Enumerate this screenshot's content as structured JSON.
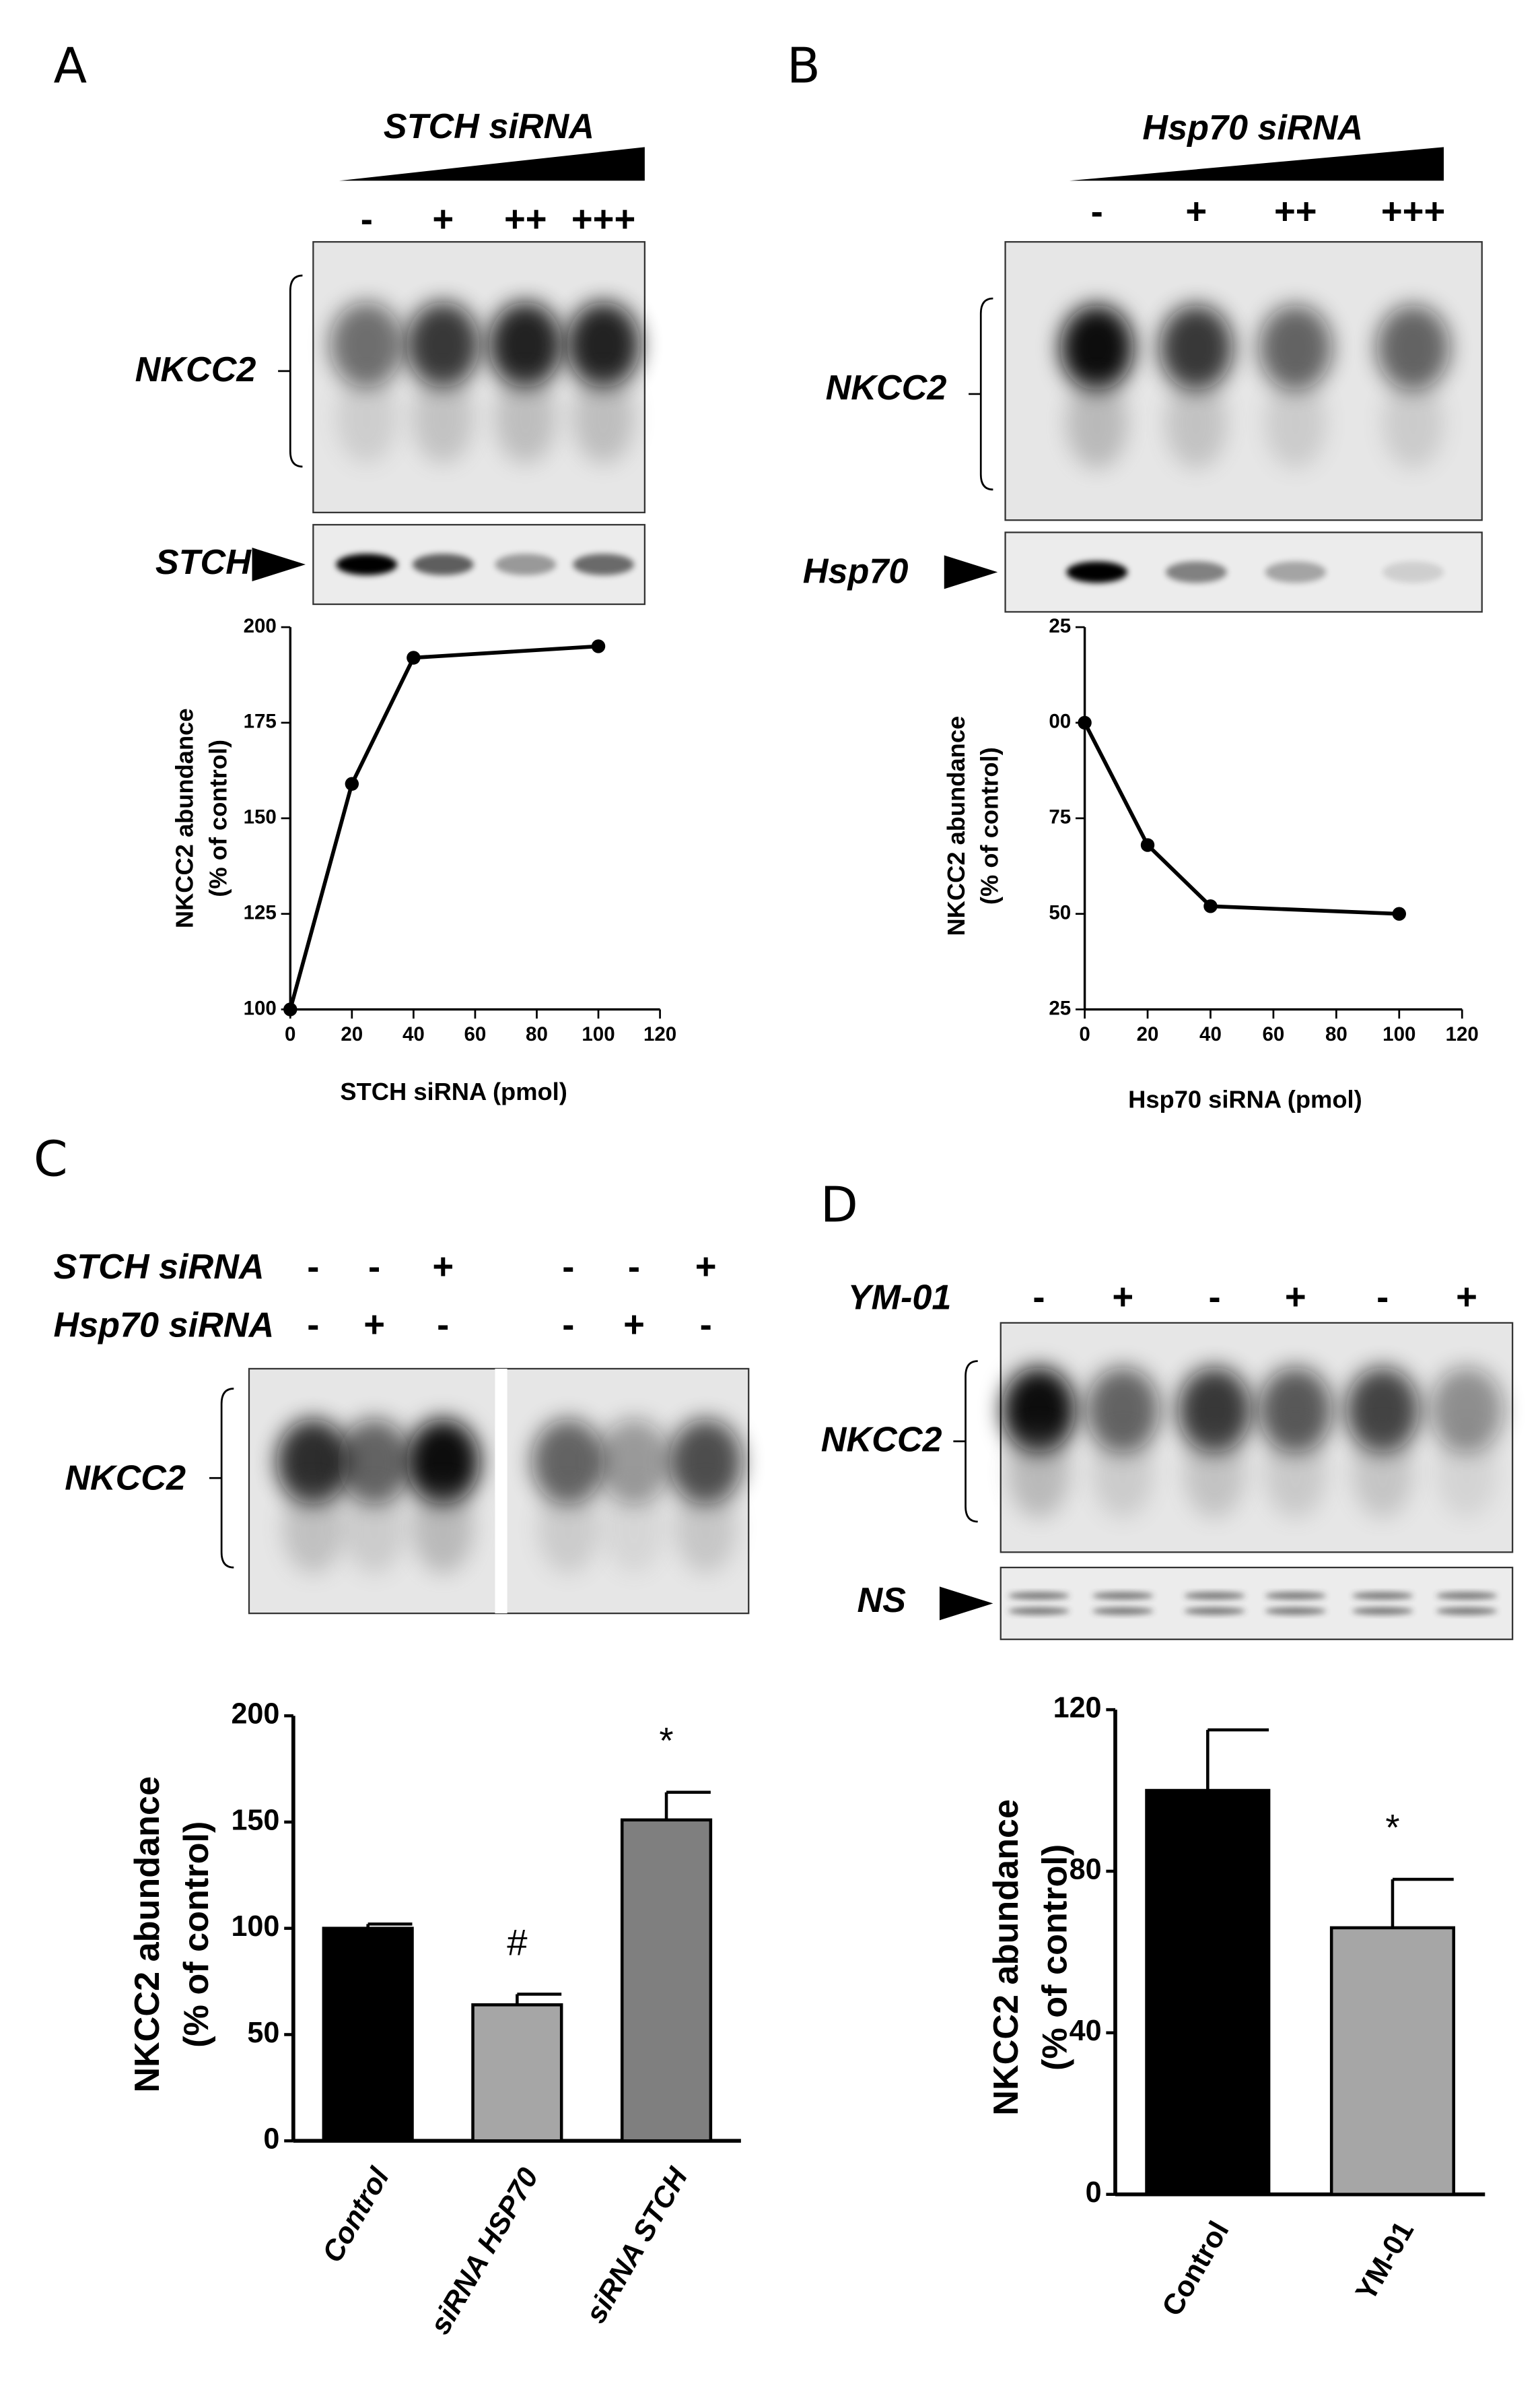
{
  "chart_data": [
    {
      "type": "line",
      "panel_label": "A",
      "treatment": "STCH siRNA",
      "lanes": [
        "-",
        "+",
        "++",
        "+++"
      ],
      "bands": [
        "NKCC2",
        "STCH"
      ],
      "x": [
        0,
        20,
        40,
        100
      ],
      "values": [
        100,
        159,
        192,
        195
      ],
      "color": "#000000",
      "xlim": [
        0,
        120
      ],
      "xticks": [
        0,
        20,
        40,
        60,
        80,
        100,
        120
      ],
      "ylim": [
        100,
        200
      ],
      "yticks": [
        100,
        125,
        150,
        175,
        200
      ],
      "x_label": "STCH siRNA (pmol)",
      "y_label": [
        "NKCC2 abundance",
        "(% of control)"
      ]
    },
    {
      "type": "line",
      "panel_label": "B",
      "treatment": "Hsp70 siRNA",
      "lanes": [
        "-",
        "+",
        "++",
        "+++"
      ],
      "bands": [
        "NKCC2",
        "Hsp70"
      ],
      "x": [
        0,
        20,
        40,
        100
      ],
      "values": [
        100,
        68,
        52,
        50
      ],
      "color": "#000000",
      "xlim": [
        0,
        120
      ],
      "xticks": [
        0,
        20,
        40,
        60,
        80,
        100,
        120
      ],
      "ylim": [
        25,
        125
      ],
      "yticks": [
        25,
        50,
        75,
        {
          "value": 100,
          "label": "00"
        },
        {
          "value": 125,
          "label": "25"
        }
      ],
      "x_label": "Hsp70 siRNA (pmol)",
      "y_label": [
        "NKCC2 abundance",
        "(% of control)"
      ]
    },
    {
      "type": "bar",
      "panel_label": "C",
      "rows": [
        {
          "label": "STCH siRNA",
          "lanes": [
            "-",
            "-",
            "+",
            "-",
            "-",
            "+"
          ]
        },
        {
          "label": "Hsp70 siRNA",
          "lanes": [
            "-",
            "+",
            "-",
            "-",
            "+",
            "-"
          ]
        }
      ],
      "bands": [
        "NKCC2"
      ],
      "categories": [
        "Control",
        "siRNA HSP70",
        "siRNA STCH"
      ],
      "values": [
        100,
        64,
        151
      ],
      "errors": [
        2,
        5,
        13
      ],
      "colors": [
        "#000000",
        "#a6a6a6",
        "#7f7f7f"
      ],
      "value_annotations": [
        null,
        "#",
        "*"
      ],
      "ylim": [
        0,
        200
      ],
      "yticks": [
        0,
        50,
        100,
        150,
        200
      ],
      "y_label": [
        "NKCC2 abundance",
        "(% of control)"
      ]
    },
    {
      "type": "bar",
      "panel_label": "D",
      "rows": [
        {
          "label": "YM-01",
          "lanes": [
            "-",
            "+",
            "-",
            "+",
            "-",
            "+"
          ]
        }
      ],
      "bands": [
        "NKCC2",
        "NS"
      ],
      "categories": [
        "Control",
        "YM-01"
      ],
      "values": [
        100,
        66
      ],
      "errors": [
        15,
        12
      ],
      "colors": [
        "#000000",
        "#a6a6a6"
      ],
      "value_annotations": [
        null,
        "*"
      ],
      "ylim": [
        0,
        120
      ],
      "yticks": [
        0,
        40,
        80,
        120
      ],
      "y_label": [
        "NKCC2 abundance",
        "(% of control)"
      ]
    }
  ]
}
